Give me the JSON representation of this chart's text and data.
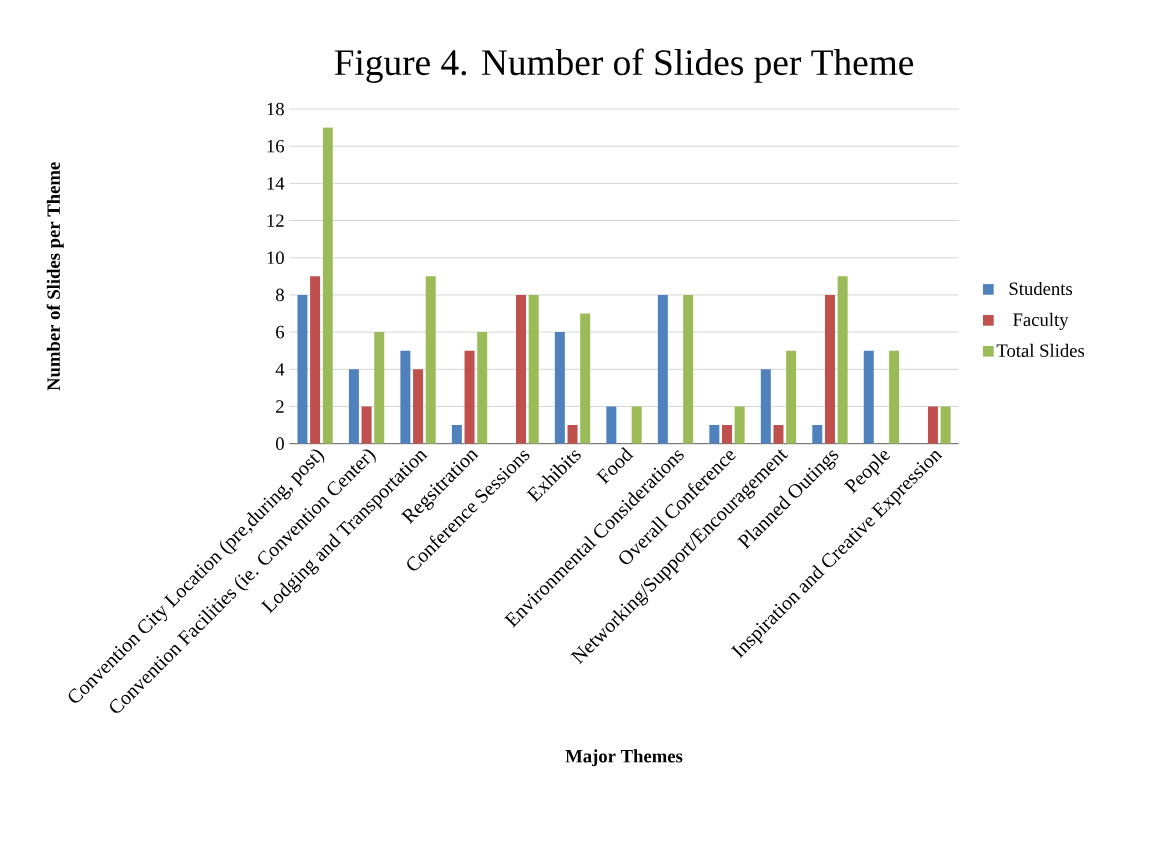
{
  "chart_data": {
    "type": "bar",
    "title": "Figure 4. Number of Slides per Theme",
    "xlabel": "Major Themes",
    "ylabel": "Number of Slides per Theme",
    "categories": [
      "Convention City Location (pre,during, post)",
      "Convention Facilities (ie. Convention Center)",
      "Lodging and Transportation",
      "Regsitration",
      "Conference Sessions",
      "Exhibits",
      "Food",
      "Environmental Considerations",
      "Overall Conference",
      "Networking/Support/Encouragement",
      "Planned Outings",
      "People",
      "Inspiration and Creative Expression"
    ],
    "series": [
      {
        "name": "Students",
        "color": "#4f81bd",
        "values": [
          8,
          4,
          5,
          1,
          0,
          6,
          2,
          8,
          1,
          4,
          1,
          5,
          0
        ]
      },
      {
        "name": "Faculty",
        "color": "#c0504d",
        "values": [
          9,
          2,
          4,
          5,
          8,
          1,
          0,
          0,
          1,
          1,
          8,
          0,
          2
        ]
      },
      {
        "name": "Total Slides",
        "color": "#9bbb59",
        "values": [
          17,
          6,
          9,
          6,
          8,
          7,
          2,
          8,
          2,
          5,
          9,
          5,
          2
        ]
      }
    ],
    "ylim": [
      0,
      18
    ],
    "yticks": [
      0,
      2,
      4,
      6,
      8,
      10,
      12,
      14,
      16,
      18
    ],
    "grid": "y",
    "legend": "right"
  }
}
